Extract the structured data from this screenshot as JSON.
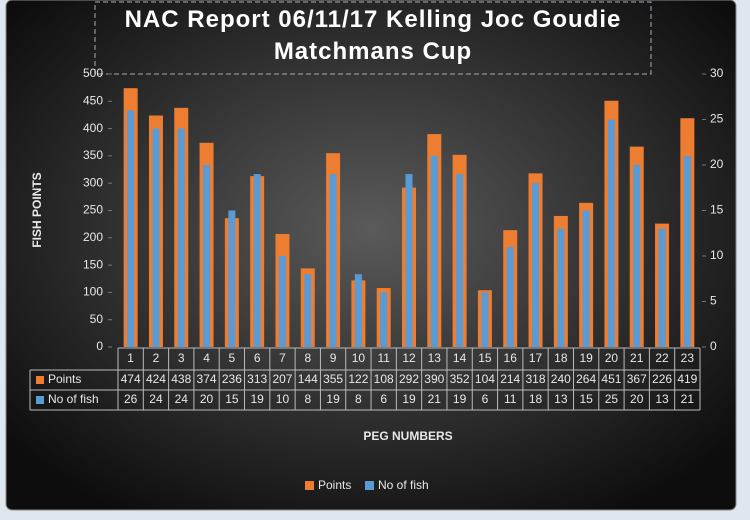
{
  "chart_data": {
    "type": "bar",
    "title": "NAC Report 06/11/17 Kelling Joc Goudie Matchmans Cup",
    "x_label": "PEG NUMBERS",
    "y_label": "FISH POINTS",
    "categories": [
      "1",
      "2",
      "3",
      "4",
      "5",
      "6",
      "7",
      "8",
      "9",
      "10",
      "11",
      "12",
      "13",
      "14",
      "15",
      "16",
      "17",
      "18",
      "19",
      "20",
      "21",
      "22",
      "23"
    ],
    "series": [
      {
        "name": "Points",
        "color": "#ed7d31",
        "values": [
          474,
          424,
          438,
          374,
          236,
          313,
          207,
          144,
          355,
          122,
          108,
          292,
          390,
          352,
          104,
          214,
          318,
          240,
          264,
          451,
          367,
          226,
          419
        ]
      },
      {
        "name": "No of fish",
        "color": "#5b9bd5",
        "axis": "y2",
        "values": [
          26,
          24,
          24,
          20,
          15,
          19,
          10,
          8,
          19,
          8,
          6,
          19,
          21,
          19,
          6,
          11,
          18,
          13,
          15,
          25,
          20,
          13,
          21
        ]
      }
    ],
    "ylim": [
      0,
      500
    ],
    "yticks": [
      0,
      50,
      100,
      150,
      200,
      250,
      300,
      350,
      400,
      450,
      500
    ],
    "y2lim": [
      0,
      30
    ],
    "y2ticks": [
      0,
      5,
      10,
      15,
      20,
      25,
      30
    ],
    "legend": "bottom",
    "data_table": true
  }
}
